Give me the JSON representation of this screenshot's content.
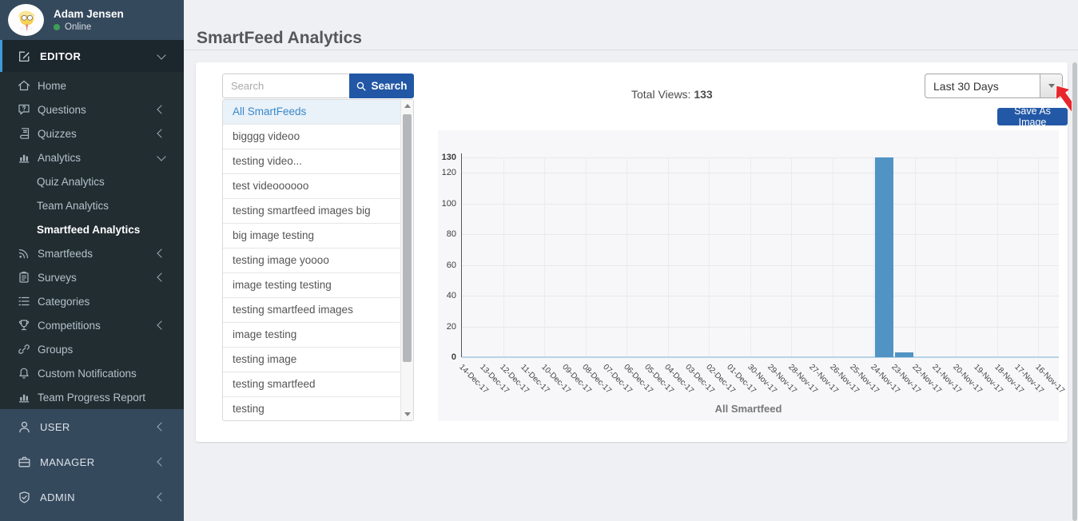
{
  "sidebar": {
    "user": {
      "name": "Adam Jensen",
      "status": "Online"
    },
    "editor_section": {
      "label": "EDITOR",
      "icon": "edit-icon",
      "chevron": "down"
    },
    "menu": [
      {
        "label": "Home",
        "icon": "home-icon"
      },
      {
        "label": "Questions",
        "icon": "question-bubble-icon",
        "chevron": "left"
      },
      {
        "label": "Quizzes",
        "icon": "quiz-book-icon",
        "chevron": "left"
      },
      {
        "label": "Analytics",
        "icon": "bar-chart-icon",
        "chevron": "down"
      },
      {
        "label": "Quiz Analytics",
        "sub": true
      },
      {
        "label": "Team Analytics",
        "sub": true
      },
      {
        "label": "Smartfeed Analytics",
        "sub": true,
        "active": true
      },
      {
        "label": "Smartfeeds",
        "icon": "feed-icon",
        "chevron": "left"
      },
      {
        "label": "Surveys",
        "icon": "clipboard-icon",
        "chevron": "left"
      },
      {
        "label": "Categories",
        "icon": "list-icon"
      },
      {
        "label": "Competitions",
        "icon": "trophy-icon",
        "chevron": "left"
      },
      {
        "label": "Groups",
        "icon": "link-icon"
      },
      {
        "label": "Custom Notifications",
        "icon": "bell-icon"
      },
      {
        "label": "Team Progress Report",
        "icon": "bar-chart-icon"
      }
    ],
    "bottom_sections": [
      {
        "label": "USER",
        "icon": "user-icon",
        "chevron": "left"
      },
      {
        "label": "MANAGER",
        "icon": "briefcase-icon",
        "chevron": "left"
      },
      {
        "label": "ADMIN",
        "icon": "shield-icon",
        "chevron": "left"
      }
    ]
  },
  "header": {
    "title": "SmartFeed Analytics"
  },
  "panel": {
    "search": {
      "placeholder": "Search",
      "value": "",
      "button_label": "Search",
      "button_icon": "search-icon"
    },
    "smartfeeds": [
      "All SmartFeeds",
      "bigggg videoo",
      "testing video...",
      "test videoooooo",
      "testing smartfeed images big",
      "big image testing",
      "testing image yoooo",
      "image testing testing",
      "testing smartfeed images",
      "image testing",
      "testing image",
      "testing smartfeed",
      "testing"
    ],
    "selected_smartfeed": "All SmartFeeds",
    "total_views_label": "Total Views:",
    "total_views_value": "133",
    "range_value": "Last 30 Days",
    "save_button_label": "Save As Image"
  },
  "chart_data": {
    "type": "bar",
    "title": "",
    "x_axis_title": "All Smartfeed",
    "categories": [
      "14-Dec-17",
      "13-Dec-17",
      "12-Dec-17",
      "11-Dec-17",
      "10-Dec-17",
      "09-Dec-17",
      "08-Dec-17",
      "07-Dec-17",
      "06-Dec-17",
      "05-Dec-17",
      "04-Dec-17",
      "03-Dec-17",
      "02-Dec-17",
      "01-Dec-17",
      "30-Nov-17",
      "29-Nov-17",
      "28-Nov-17",
      "27-Nov-17",
      "26-Nov-17",
      "25-Nov-17",
      "24-Nov-17",
      "23-Nov-17",
      "22-Nov-17",
      "21-Nov-17",
      "20-Nov-17",
      "19-Nov-17",
      "18-Nov-17",
      "17-Nov-17",
      "16-Nov-17"
    ],
    "values": [
      0,
      0,
      0,
      0,
      0,
      0,
      0,
      0,
      0,
      0,
      0,
      0,
      0,
      0,
      0,
      0,
      0,
      0,
      0,
      0,
      130,
      3,
      0,
      0,
      0,
      0,
      0,
      0,
      0
    ],
    "ylim": [
      0,
      130
    ],
    "yticks": [
      0,
      20,
      40,
      60,
      80,
      100,
      120
    ],
    "ymax_label": "130",
    "grid": true,
    "legend": "none",
    "bar_color": "#5093c4",
    "zero_line_color": "#b7d2e8"
  },
  "colors": {
    "sidebar_bg": "#35495d",
    "sidebar_submenu_bg": "#222d32",
    "active_section_bg": "#1c262d",
    "accent_stripe": "#3f9bd8",
    "primary_button": "#2157a4",
    "online_green": "#3f9d57",
    "selected_item_bg": "#e9f1f9",
    "selected_item_text": "#3a87c8",
    "pointer_red": "#e8262d"
  }
}
